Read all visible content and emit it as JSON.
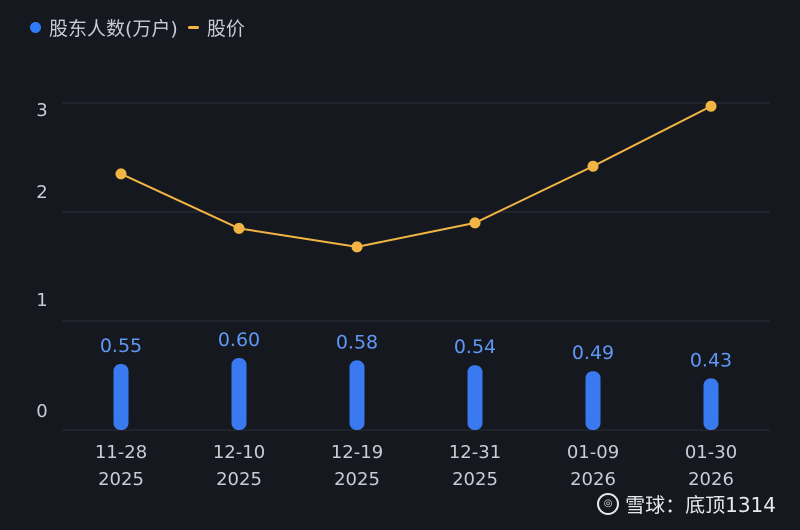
{
  "legend": {
    "bar_label": "股东人数(万户)",
    "line_label": "股价"
  },
  "watermark": {
    "text": "雪球：底顶1314"
  },
  "colors": {
    "background": "#15181f",
    "bar": "#3a7af0",
    "bar_label": "#5f97f4",
    "line": "#f2b544",
    "grid": "#2a2e37",
    "tick_text": "#c9ccd4"
  },
  "chart_data": {
    "type": "bar",
    "categories": [
      "11-28\n2025",
      "12-10\n2025",
      "12-19\n2025",
      "12-31\n2025",
      "01-09\n2026",
      "01-30\n2026"
    ],
    "series": [
      {
        "name": "股东人数(万户)",
        "type": "bar",
        "values": [
          0.55,
          0.6,
          0.58,
          0.54,
          0.49,
          0.43
        ],
        "labels": [
          "0.55",
          "0.60",
          "0.58",
          "0.54",
          "0.49",
          "0.43"
        ]
      },
      {
        "name": "股价",
        "type": "line",
        "values": [
          2.35,
          1.85,
          1.68,
          1.9,
          2.42,
          2.97
        ]
      }
    ],
    "yticks": [
      "0",
      "1",
      "2",
      "3"
    ],
    "grid": true,
    "legend_position": "top-left"
  }
}
